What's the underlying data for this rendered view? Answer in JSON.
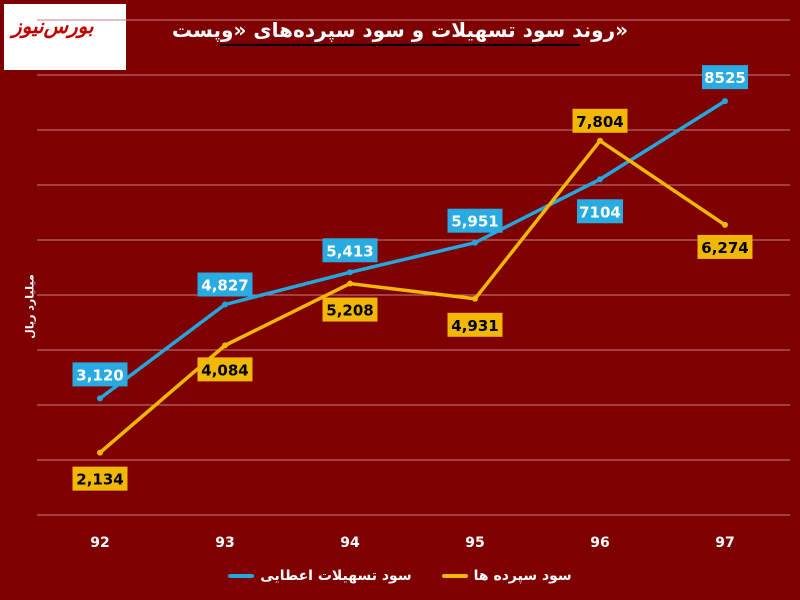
{
  "logo": {
    "text": "بورس‌نیوز"
  },
  "chart_data": {
    "type": "line",
    "title": "روند سود تسهیلات و سود سپرده‌های «وپست»",
    "ylabel": "میلیارد ریال",
    "xlabel": "",
    "categories": [
      "92",
      "93",
      "94",
      "95",
      "96",
      "97"
    ],
    "ylim": [
      1000,
      10000
    ],
    "grid": true,
    "legend_position": "bottom",
    "series": [
      {
        "name": "سود تسهیلات اعطایی",
        "color": "#22a7df",
        "values": [
          3120,
          4827,
          5413,
          5951,
          7104,
          8525
        ],
        "labels": [
          "3,120",
          "4,827",
          "5,413",
          "5,951",
          "7104",
          "8525"
        ],
        "label_bg": "#29abe2"
      },
      {
        "name": "سود سپرده ها",
        "color": "#f2b705",
        "values": [
          2134,
          4084,
          5208,
          4931,
          7804,
          6274
        ],
        "labels": [
          "2,134",
          "4,084",
          "5,208",
          "4,931",
          "7,804",
          "6,274"
        ],
        "label_bg": "#f2b705"
      }
    ]
  }
}
